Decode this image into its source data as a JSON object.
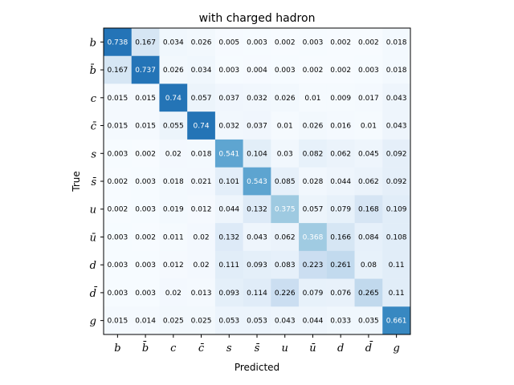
{
  "chart_data": {
    "type": "heatmap",
    "title": "with charged hadron",
    "xlabel": "Predicted",
    "ylabel": "True",
    "x_categories": [
      "b",
      "b̄",
      "c",
      "c̄",
      "s",
      "s̄",
      "u",
      "ū",
      "d",
      "d̄",
      "g"
    ],
    "y_categories": [
      "b",
      "b̄",
      "c",
      "c̄",
      "s",
      "s̄",
      "u",
      "ū",
      "d",
      "d̄",
      "g"
    ],
    "values": [
      [
        0.738,
        0.167,
        0.034,
        0.026,
        0.005,
        0.003,
        0.002,
        0.003,
        0.002,
        0.002,
        0.018
      ],
      [
        0.167,
        0.737,
        0.026,
        0.034,
        0.003,
        0.004,
        0.003,
        0.002,
        0.002,
        0.003,
        0.018
      ],
      [
        0.015,
        0.015,
        0.74,
        0.057,
        0.037,
        0.032,
        0.026,
        0.01,
        0.009,
        0.017,
        0.043
      ],
      [
        0.015,
        0.015,
        0.055,
        0.74,
        0.032,
        0.037,
        0.01,
        0.026,
        0.016,
        0.01,
        0.043
      ],
      [
        0.003,
        0.002,
        0.02,
        0.018,
        0.541,
        0.104,
        0.03,
        0.082,
        0.062,
        0.045,
        0.092
      ],
      [
        0.002,
        0.003,
        0.018,
        0.021,
        0.101,
        0.543,
        0.085,
        0.028,
        0.044,
        0.062,
        0.092
      ],
      [
        0.002,
        0.003,
        0.019,
        0.012,
        0.044,
        0.132,
        0.375,
        0.057,
        0.079,
        0.168,
        0.109
      ],
      [
        0.003,
        0.002,
        0.011,
        0.02,
        0.132,
        0.043,
        0.062,
        0.368,
        0.166,
        0.084,
        0.108
      ],
      [
        0.003,
        0.003,
        0.012,
        0.02,
        0.111,
        0.093,
        0.083,
        0.223,
        0.261,
        0.08,
        0.11
      ],
      [
        0.003,
        0.003,
        0.02,
        0.013,
        0.093,
        0.114,
        0.226,
        0.079,
        0.076,
        0.265,
        0.11
      ],
      [
        0.015,
        0.014,
        0.025,
        0.025,
        0.053,
        0.053,
        0.043,
        0.044,
        0.033,
        0.035,
        0.661
      ]
    ],
    "colormap": "Blues",
    "value_range": [
      0,
      1
    ],
    "grid": false,
    "legend": "none"
  }
}
